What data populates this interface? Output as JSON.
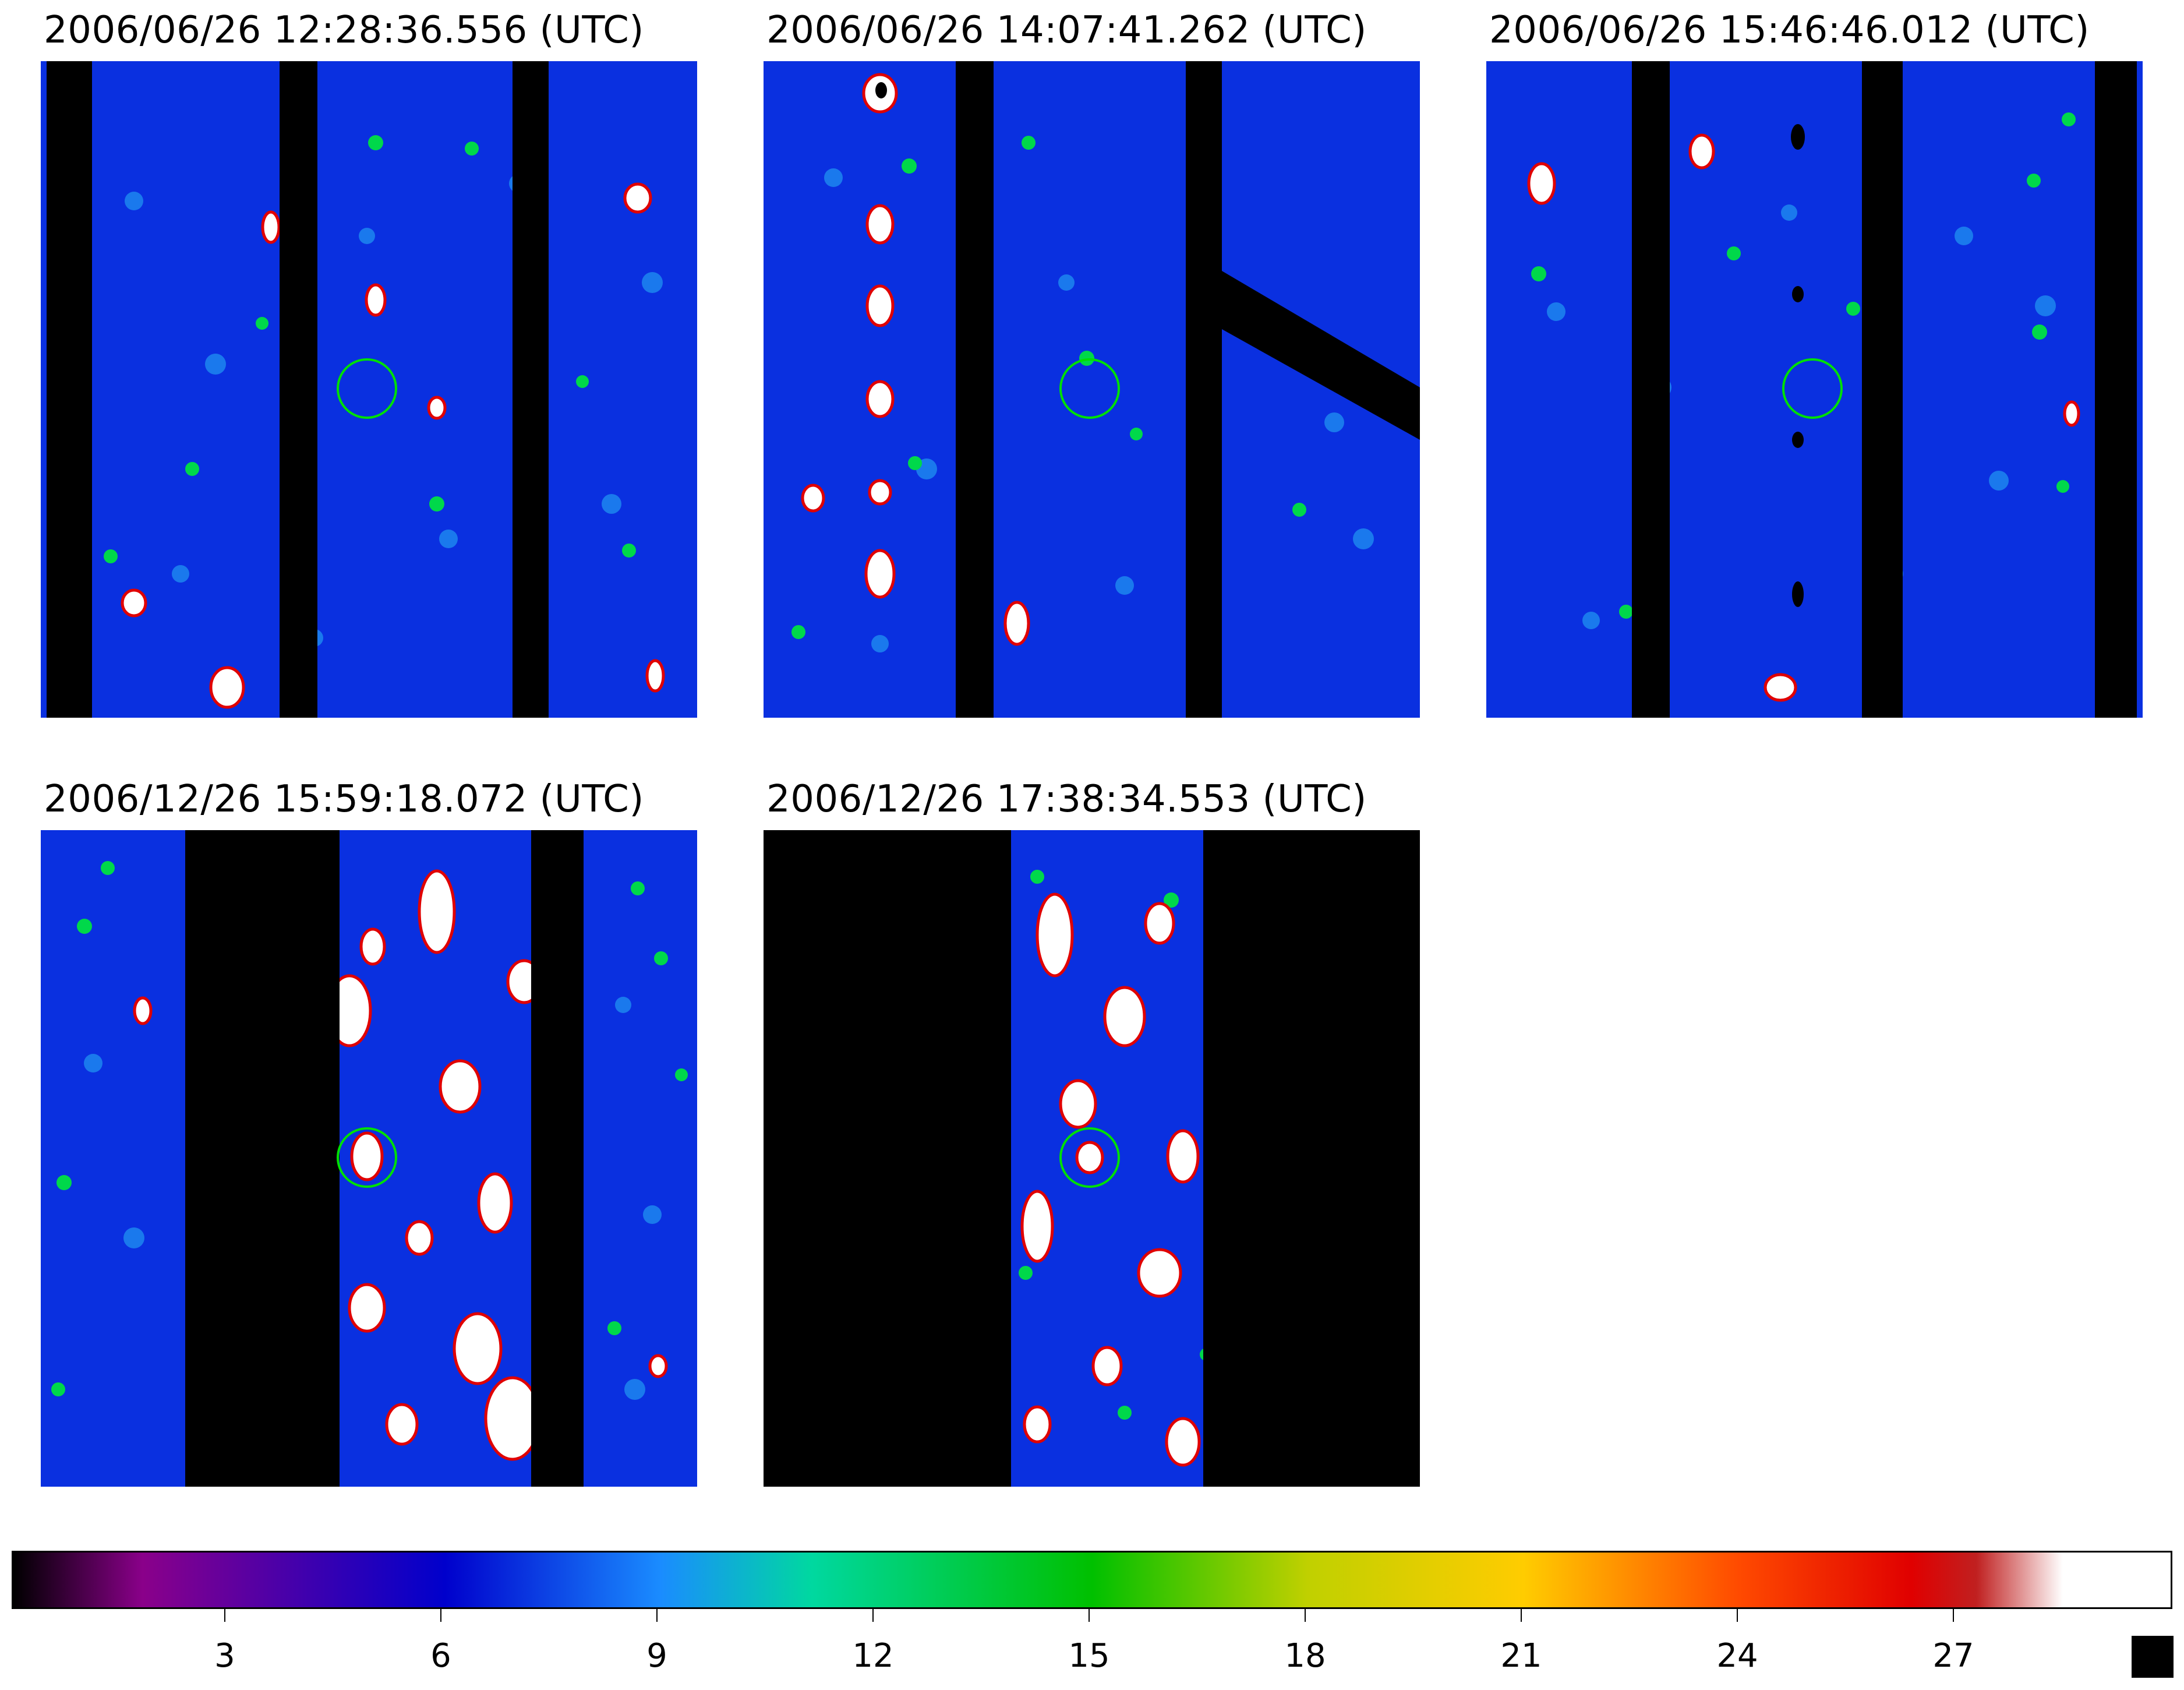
{
  "panels": [
    {
      "title": "2006/06/26 12:28:36.556 (UTC)"
    },
    {
      "title": "2006/06/26 14:07:41.262 (UTC)"
    },
    {
      "title": "2006/06/26 15:46:46.012 (UTC)"
    },
    {
      "title": "2006/12/26 15:59:18.072 (UTC)"
    },
    {
      "title": "2006/12/26 17:38:34.553 (UTC)"
    }
  ],
  "colorbar": {
    "ticks": [
      "3",
      "6",
      "9",
      "12",
      "15",
      "18",
      "21",
      "24",
      "27"
    ],
    "range": [
      0,
      30
    ],
    "saturation_color": "#000000"
  },
  "colors": {
    "background": "#0a2fe0",
    "mask": "#000000",
    "marker_circle": "#00e000"
  }
}
